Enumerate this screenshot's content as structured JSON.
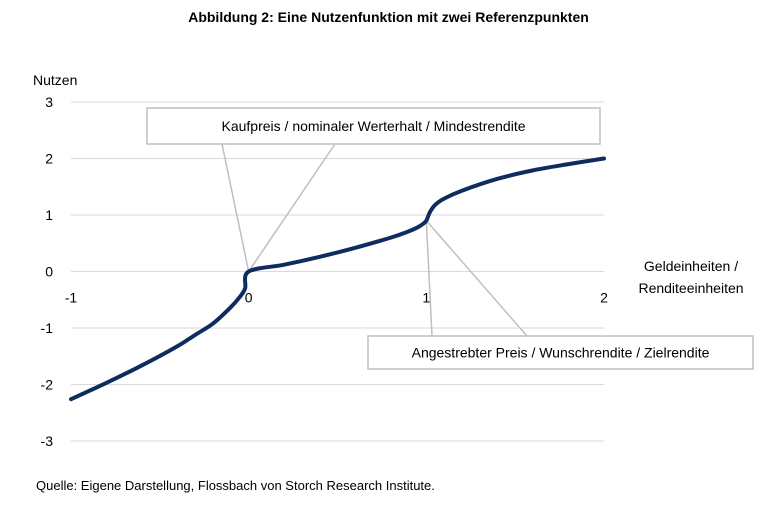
{
  "title": "Abbildung 2: Eine Nutzenfunktion mit zwei Referenzpunkten",
  "source": "Quelle: Eigene Darstellung, Flossbach von Storch Research Institute.",
  "chart_data": {
    "type": "line",
    "ylabel": "Nutzen",
    "xlabel_lines": [
      "Geldeinheiten /",
      "Renditeeinheiten"
    ],
    "xlim": [
      -1,
      2
    ],
    "ylim": [
      -3,
      3
    ],
    "x_ticks": [
      "-1",
      "0",
      "1",
      "2"
    ],
    "y_ticks": [
      "3",
      "2",
      "1",
      "0",
      "-1",
      "-2",
      "-3"
    ],
    "grid": "horizontal",
    "line_color": "#0e2d5e",
    "grid_color": "#d9d9d9",
    "callout_color": "#bfbfbf",
    "series": [
      {
        "x": [
          -1,
          -0.8,
          -0.6,
          -0.4,
          -0.3,
          -0.2,
          -0.1,
          -0.05,
          -0.02,
          0,
          0.2,
          0.4,
          0.6,
          0.8,
          0.9,
          0.95,
          0.98,
          1,
          1.02,
          1.05,
          1.1,
          1.2,
          1.4,
          1.6,
          1.8,
          2
        ],
        "y": [
          -2.26,
          -1.97,
          -1.66,
          -1.32,
          -1.12,
          -0.92,
          -0.63,
          -0.45,
          -0.3,
          0,
          0.12,
          0.26,
          0.42,
          0.6,
          0.71,
          0.78,
          0.84,
          0.9,
          1.05,
          1.18,
          1.29,
          1.43,
          1.64,
          1.79,
          1.9,
          2
        ]
      }
    ],
    "annotations": [
      {
        "text": "Kaufpreis / nominaler Werterhalt / Mindestrendite",
        "point": [
          0,
          0
        ]
      },
      {
        "text": "Angestrebter Preis / Wunschrendite / Zielrendite",
        "point": [
          1,
          0.9
        ]
      }
    ]
  }
}
